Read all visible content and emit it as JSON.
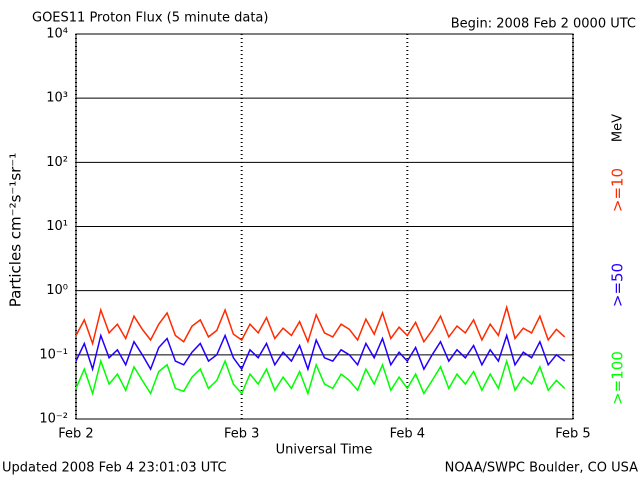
{
  "chart_data": {
    "type": "line",
    "title": "GOES11 Proton Flux (5 minute data)",
    "subtitle": "Begin: 2008 Feb 2 0000 UTC",
    "y_label": "Particles cm⁻²s⁻¹sr⁻¹",
    "x_label": "Universal Time",
    "footer_left": "Updated 2008 Feb  4 23:01:03 UTC",
    "footer_right": "NOAA/SWPC Boulder, CO USA",
    "legend_unit": "MeV",
    "log_y": true,
    "grid": true,
    "xlim": [
      0,
      3
    ],
    "xticks": [
      {
        "value": 0,
        "label": "Feb 2"
      },
      {
        "value": 1,
        "label": "Feb 3"
      },
      {
        "value": 2,
        "label": "Feb 4"
      },
      {
        "value": 3,
        "label": "Feb 5"
      }
    ],
    "ylim": [
      0.01,
      10000
    ],
    "yticks": [
      {
        "value": 0.01,
        "label": "10⁻²"
      },
      {
        "value": 0.1,
        "label": "10⁻¹"
      },
      {
        "value": 1,
        "label": "10⁰"
      },
      {
        "value": 10,
        "label": "10¹"
      },
      {
        "value": 100,
        "label": "10²"
      },
      {
        "value": 1000,
        "label": "10³"
      },
      {
        "value": 10000,
        "label": "10⁴"
      }
    ],
    "x": [
      0,
      0.05,
      0.1,
      0.15,
      0.2,
      0.25,
      0.3,
      0.35,
      0.4,
      0.45,
      0.5,
      0.55,
      0.6,
      0.65,
      0.7,
      0.75,
      0.8,
      0.85,
      0.9,
      0.95,
      1,
      1.05,
      1.1,
      1.15,
      1.2,
      1.25,
      1.3,
      1.35,
      1.4,
      1.45,
      1.5,
      1.55,
      1.6,
      1.65,
      1.7,
      1.75,
      1.8,
      1.85,
      1.9,
      1.95,
      2,
      2.05,
      2.1,
      2.15,
      2.2,
      2.25,
      2.3,
      2.35,
      2.4,
      2.45,
      2.5,
      2.55,
      2.6,
      2.65,
      2.7,
      2.75,
      2.8,
      2.85,
      2.9,
      2.95
    ],
    "series": [
      {
        "name": ">=10",
        "color": "#ff2a00",
        "values": [
          0.2,
          0.35,
          0.15,
          0.5,
          0.22,
          0.3,
          0.18,
          0.4,
          0.25,
          0.17,
          0.3,
          0.45,
          0.2,
          0.16,
          0.28,
          0.35,
          0.19,
          0.24,
          0.5,
          0.21,
          0.17,
          0.3,
          0.22,
          0.38,
          0.18,
          0.26,
          0.2,
          0.33,
          0.16,
          0.42,
          0.22,
          0.19,
          0.3,
          0.25,
          0.17,
          0.36,
          0.21,
          0.45,
          0.18,
          0.27,
          0.2,
          0.32,
          0.16,
          0.24,
          0.4,
          0.19,
          0.28,
          0.22,
          0.35,
          0.17,
          0.3,
          0.2,
          0.55,
          0.18,
          0.26,
          0.22,
          0.4,
          0.17,
          0.25,
          0.19
        ]
      },
      {
        "name": ">=50",
        "color": "#2200ff",
        "values": [
          0.08,
          0.15,
          0.06,
          0.2,
          0.09,
          0.12,
          0.07,
          0.16,
          0.1,
          0.06,
          0.13,
          0.18,
          0.08,
          0.07,
          0.11,
          0.15,
          0.08,
          0.1,
          0.2,
          0.09,
          0.06,
          0.12,
          0.09,
          0.15,
          0.07,
          0.11,
          0.08,
          0.14,
          0.06,
          0.17,
          0.09,
          0.08,
          0.12,
          0.1,
          0.07,
          0.15,
          0.09,
          0.18,
          0.07,
          0.11,
          0.08,
          0.13,
          0.06,
          0.1,
          0.16,
          0.08,
          0.12,
          0.09,
          0.14,
          0.07,
          0.12,
          0.08,
          0.2,
          0.07,
          0.11,
          0.09,
          0.16,
          0.07,
          0.1,
          0.08
        ]
      },
      {
        "name": ">=100",
        "color": "#00ff00",
        "values": [
          0.03,
          0.06,
          0.025,
          0.08,
          0.035,
          0.05,
          0.028,
          0.065,
          0.04,
          0.025,
          0.055,
          0.07,
          0.03,
          0.027,
          0.045,
          0.06,
          0.03,
          0.04,
          0.08,
          0.035,
          0.025,
          0.05,
          0.035,
          0.06,
          0.028,
          0.045,
          0.03,
          0.055,
          0.025,
          0.07,
          0.035,
          0.03,
          0.05,
          0.04,
          0.028,
          0.06,
          0.035,
          0.07,
          0.028,
          0.045,
          0.03,
          0.05,
          0.025,
          0.04,
          0.065,
          0.03,
          0.05,
          0.035,
          0.055,
          0.028,
          0.05,
          0.03,
          0.08,
          0.028,
          0.045,
          0.035,
          0.065,
          0.028,
          0.04,
          0.03
        ]
      }
    ]
  }
}
